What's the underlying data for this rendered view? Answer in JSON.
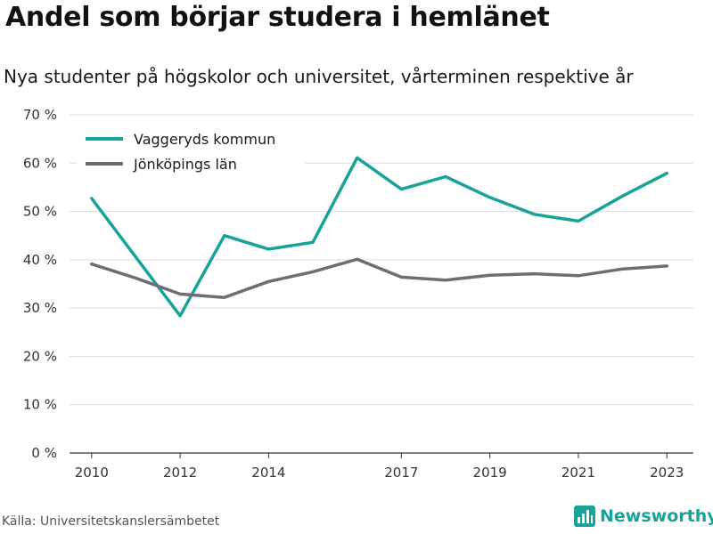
{
  "title": "Andel som börjar studera i hemlänet",
  "subtitle": "Nya studenter på högskolor och universitet, vårterminen respektive år",
  "source": "Källa: Universitetskanslersämbetet",
  "brand": {
    "name": "Newsworthy",
    "icon": "bar-chart-logo-icon",
    "color": "#17a398"
  },
  "chart_data": {
    "type": "line",
    "x": [
      2010,
      2011,
      2012,
      2013,
      2014,
      2015,
      2016,
      2017,
      2018,
      2019,
      2020,
      2021,
      2022,
      2023
    ],
    "x_tick_values": [
      2010,
      2012,
      2014,
      2017,
      2019,
      2021,
      2023
    ],
    "x_tick_labels": [
      "2010",
      "2012",
      "2014",
      "2017",
      "2019",
      "2021",
      "2023"
    ],
    "y_tick_values": [
      0,
      10,
      20,
      30,
      40,
      50,
      60,
      70
    ],
    "y_tick_labels": [
      "0 %",
      "10 %",
      "20 %",
      "30 %",
      "40 %",
      "50 %",
      "60 %",
      "70 %"
    ],
    "ylim": [
      0,
      70
    ],
    "xlim": [
      2009.5,
      2023.6
    ],
    "grid": true,
    "legend_position": "top-left",
    "series": [
      {
        "name": "Vaggeryds kommun",
        "color": "#17a398",
        "values": [
          52.7,
          40.5,
          28.4,
          45.0,
          42.2,
          43.6,
          61.1,
          54.6,
          57.2,
          52.9,
          49.4,
          48.0,
          53.2,
          57.9
        ]
      },
      {
        "name": "Jönköpings län",
        "color": "#6e6c75",
        "values": [
          39.1,
          36.2,
          32.9,
          32.2,
          35.5,
          37.5,
          40.1,
          36.4,
          35.8,
          36.8,
          37.1,
          36.7,
          38.1,
          38.7
        ]
      }
    ]
  }
}
